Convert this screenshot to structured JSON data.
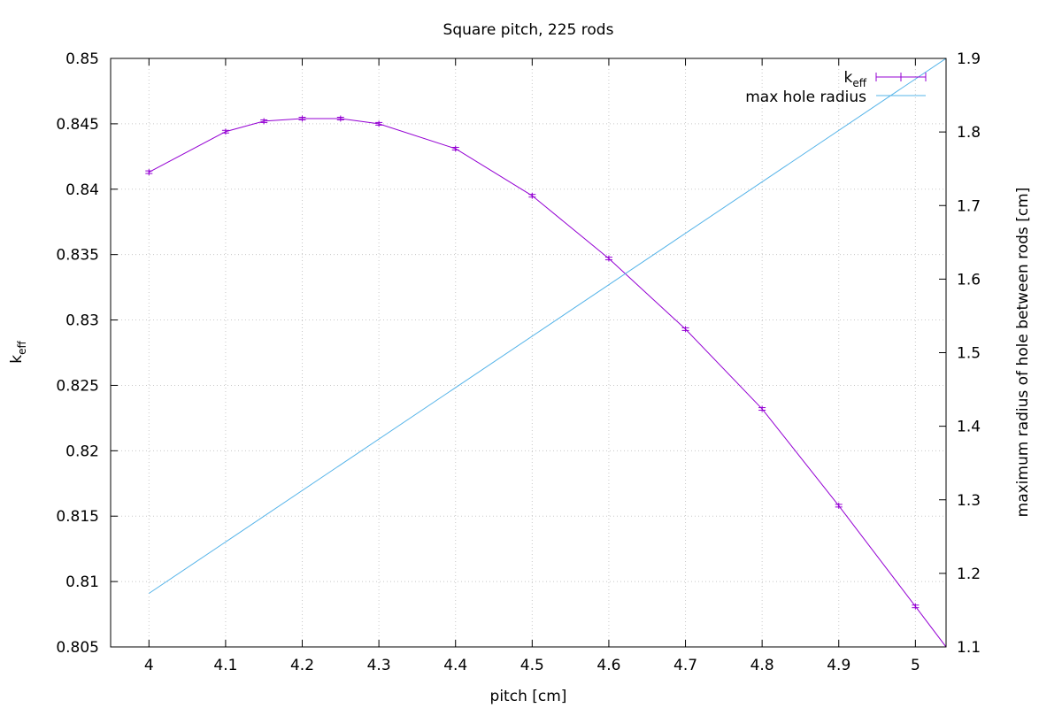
{
  "chart_data": {
    "type": "line",
    "title": "Square pitch, 225 rods",
    "xlabel": "pitch [cm]",
    "ylabel": {
      "main": "k",
      "sub": "eff"
    },
    "y2label": "maximum radius of hole between rods [cm]",
    "xlim": [
      3.95,
      5.04
    ],
    "ylim": [
      0.805,
      0.85
    ],
    "y2lim": [
      1.1,
      1.9
    ],
    "xticks": [
      "4",
      "4.1",
      "4.2",
      "4.3",
      "4.4",
      "4.5",
      "4.6",
      "4.7",
      "4.8",
      "4.9",
      "5"
    ],
    "yticks": [
      "0.805",
      "0.81",
      "0.815",
      "0.82",
      "0.825",
      "0.83",
      "0.835",
      "0.84",
      "0.845",
      "0.85"
    ],
    "y2ticks": [
      "1.1",
      "1.2",
      "1.3",
      "1.4",
      "1.5",
      "1.6",
      "1.7",
      "1.8",
      "1.9"
    ],
    "grid": true,
    "legend_position": "top-right",
    "series": [
      {
        "name": {
          "main": "k",
          "sub": "eff"
        },
        "axis": "left",
        "color": "#9400d3",
        "style": "line-errorbars",
        "x": [
          4.0,
          4.1,
          4.15,
          4.2,
          4.25,
          4.3,
          4.4,
          4.5,
          4.6,
          4.7,
          4.8,
          4.9,
          5.0,
          5.04
        ],
        "y": [
          0.8413,
          0.8444,
          0.8452,
          0.8454,
          0.8454,
          0.845,
          0.8431,
          0.8395,
          0.8347,
          0.8293,
          0.8232,
          0.8158,
          0.8081,
          0.805
        ],
        "errors": [
          0.0001,
          0.0001,
          0.0001,
          0.0001,
          0.0001,
          0.0001,
          0.0001,
          0.0001,
          0.0001,
          0.0001,
          0.0001,
          0.0001,
          0.0001,
          null
        ]
      },
      {
        "name": "max hole radius",
        "axis": "right",
        "color": "#56b4e9",
        "style": "line",
        "x": [
          4.0,
          5.04
        ],
        "y": [
          1.1728,
          1.9
        ]
      }
    ]
  }
}
